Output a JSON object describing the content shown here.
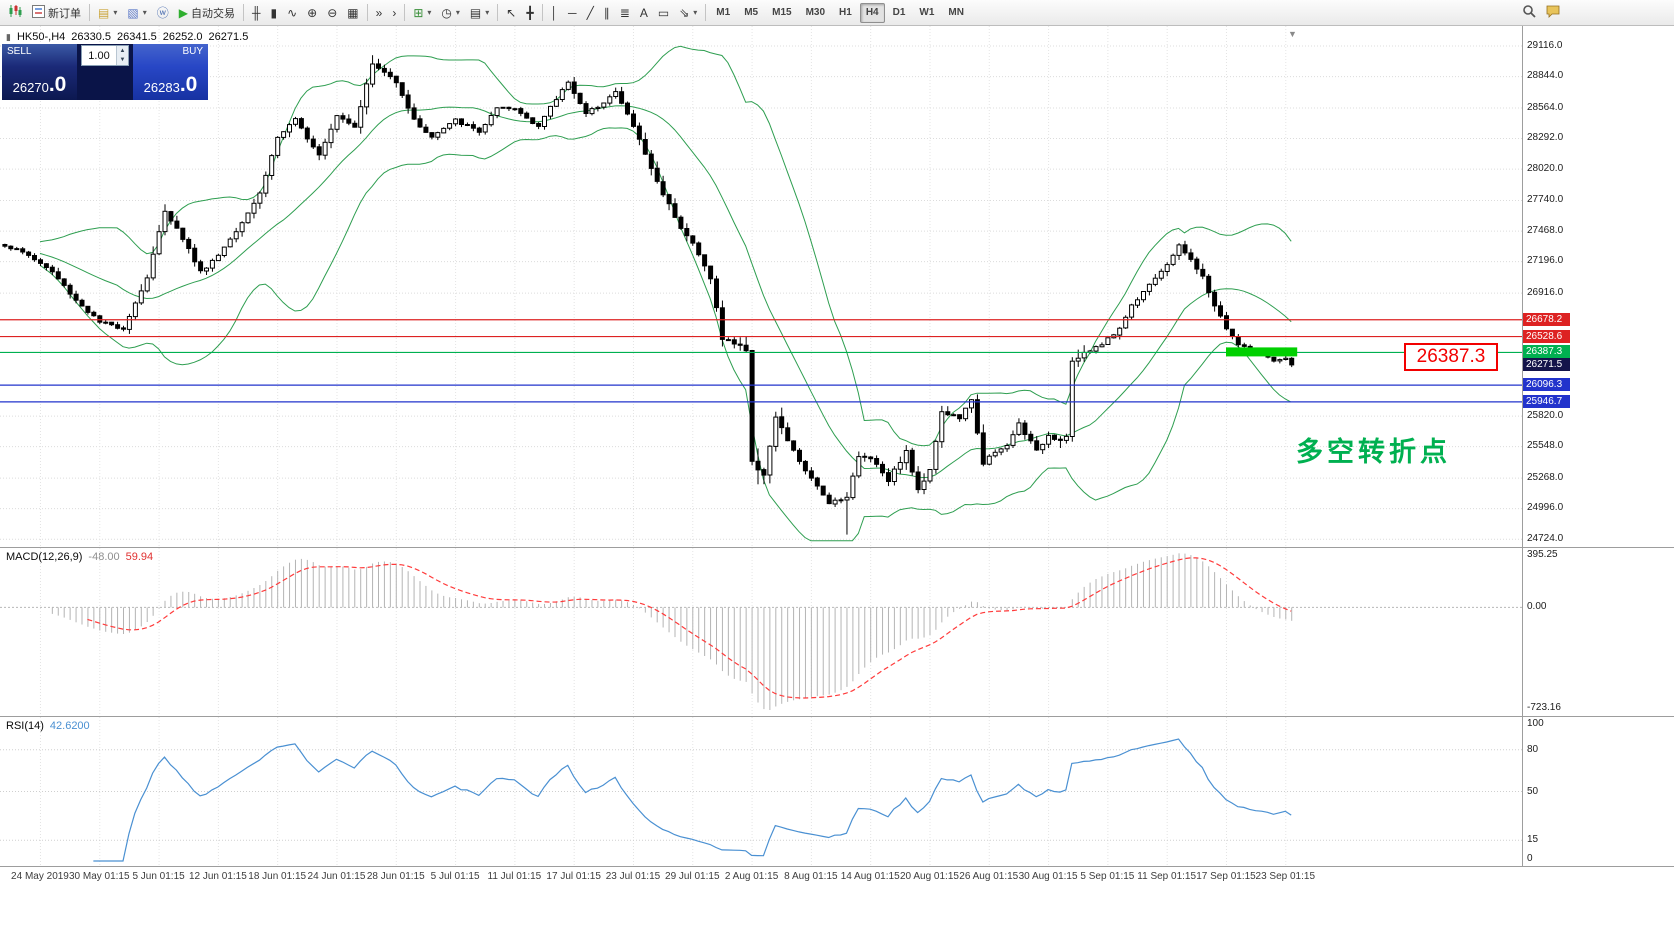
{
  "toolbar": {
    "new_order_label": "新订单",
    "auto_trading_label": "自动交易",
    "timeframes": [
      "M1",
      "M5",
      "M15",
      "M30",
      "H1",
      "H4",
      "D1",
      "W1",
      "MN"
    ],
    "active_timeframe": "H4",
    "items": [
      {
        "name": "app-icon",
        "icon": "logo",
        "inter": false
      },
      {
        "name": "new-order-button",
        "icon": "neworder",
        "label": "新订单"
      },
      {
        "type": "sep"
      },
      {
        "name": "new-chart-icon",
        "glyph": "▤",
        "color": "#caa53c",
        "dropdown": true
      },
      {
        "name": "profiles-icon",
        "glyph": "▧",
        "color": "#5b78c8",
        "dropdown": true
      },
      {
        "name": "data-window-icon",
        "glyph": "ⓦ",
        "color": "#4a6db0"
      },
      {
        "name": "auto-trading-button",
        "glyph": "▶",
        "color": "#2faf2f",
        "label": "自动交易"
      },
      {
        "type": "sep"
      },
      {
        "name": "bar-chart-button",
        "glyph": "╫"
      },
      {
        "name": "candle-chart-button",
        "glyph": "▮"
      },
      {
        "name": "line-chart-button",
        "glyph": "∿"
      },
      {
        "name": "zoom-in-button",
        "glyph": "⊕"
      },
      {
        "name": "zoom-out-button",
        "glyph": "⊖"
      },
      {
        "name": "tile-windows-icon",
        "glyph": "▦"
      },
      {
        "type": "sep"
      },
      {
        "name": "auto-scroll-button",
        "glyph": "»"
      },
      {
        "name": "chart-shift-button",
        "glyph": "›"
      },
      {
        "type": "sep"
      },
      {
        "name": "indicators-button",
        "glyph": "⊞",
        "color": "#3a8f3a",
        "dropdown": true
      },
      {
        "name": "periods-button",
        "glyph": "◷",
        "dropdown": true
      },
      {
        "name": "templates-button",
        "glyph": "▤",
        "dropdown": true
      },
      {
        "type": "sep"
      },
      {
        "name": "cursor-button",
        "glyph": "↖"
      },
      {
        "name": "crosshair-button",
        "glyph": "╋"
      },
      {
        "type": "sep"
      },
      {
        "name": "vertical-line-button",
        "glyph": "│"
      },
      {
        "name": "horizontal-line-button",
        "glyph": "─"
      },
      {
        "name": "trendline-button",
        "glyph": "╱"
      },
      {
        "name": "channel-button",
        "glyph": "∥"
      },
      {
        "name": "fibonacci-button",
        "glyph": "≣"
      },
      {
        "name": "text-button",
        "glyph": "A"
      },
      {
        "name": "text-label-button",
        "glyph": "▭"
      },
      {
        "name": "arrows-button",
        "glyph": "⇘",
        "dropdown": true
      },
      {
        "type": "sep"
      },
      {
        "type": "timeframes"
      },
      {
        "type": "spacer"
      },
      {
        "name": "search-icon",
        "icon": "search"
      },
      {
        "name": "chat-icon",
        "icon": "chat"
      },
      {
        "type": "endgap"
      }
    ]
  },
  "chart_header": {
    "icon_glyph": "▮",
    "symbol_period": "HK50-,H4",
    "open": "26330.5",
    "high": "26341.5",
    "low": "26252.0",
    "close": "26271.5"
  },
  "one_click": {
    "sell_label": "SELL",
    "buy_label": "BUY",
    "sell_price_main": "26270",
    "sell_price_frac": ".0",
    "buy_price_main": "26283",
    "buy_price_frac": ".0",
    "volume": "1.00",
    "spin_up": "▲",
    "spin_down": "▼"
  },
  "price_scale": {
    "ticks": [
      "29116.0",
      "28844.0",
      "28564.0",
      "28292.0",
      "28020.0",
      "27740.0",
      "27468.0",
      "27196.0",
      "26916.0",
      "25820.0",
      "25548.0",
      "25268.0",
      "24996.0",
      "24724.0"
    ]
  },
  "hlines": [
    {
      "price": 26678.2,
      "label": "26678.2",
      "color": "#dd2222"
    },
    {
      "price": 26528.6,
      "label": "26528.6",
      "color": "#dd2222"
    },
    {
      "price": 26387.3,
      "label": "26387.3",
      "color": "#00b050"
    },
    {
      "price": 26096.3,
      "label": "26096.3",
      "color": "#2233cc"
    },
    {
      "price": 25946.7,
      "label": "25946.7",
      "color": "#2233cc"
    }
  ],
  "current_price": {
    "price": 26271.5,
    "label": "26271.5",
    "color": "#14144a"
  },
  "annotations": {
    "callout": "26387.3",
    "turning_point": "多空转折点",
    "scroll_marker": "▼",
    "highlight_price": 26387.3,
    "highlight_from_bar": 206
  },
  "macd": {
    "label": "MACD(12,26,9)",
    "value_main": "-48.00",
    "value_signal": "59.94",
    "scale": [
      "395.25",
      "0.00",
      "-723.16"
    ]
  },
  "rsi": {
    "label": "RSI(14)",
    "value": "42.6200",
    "scale": [
      "100",
      "80",
      "50",
      "15",
      "0"
    ],
    "levels": [
      80,
      50,
      15
    ]
  },
  "x_axis": [
    "24 May 2019",
    "30 May 01:15",
    "5 Jun 01:15",
    "12 Jun 01:15",
    "18 Jun 01:15",
    "24 Jun 01:15",
    "28 Jun 01:15",
    "5 Jul 01:15",
    "11 Jul 01:15",
    "17 Jul 01:15",
    "23 Jul 01:15",
    "29 Jul 01:15",
    "2 Aug 01:15",
    "8 Aug 01:15",
    "14 Aug 01:15",
    "20 Aug 01:15",
    "26 Aug 01:15",
    "30 Aug 01:15",
    "5 Sep 01:15",
    "11 Sep 01:15",
    "17 Sep 01:15",
    "23 Sep 01:15"
  ],
  "colors": {
    "band": "#2e9e50",
    "bull": "#ffffff",
    "bear": "#000000",
    "wick": "#000000",
    "macd_hist": "#b4b4b4",
    "macd_signal": "#ff3b3b",
    "rsi_line": "#4a90d2",
    "highlight": "#00d000",
    "grid": "#dcdcdc"
  },
  "chart_data": {
    "type": "candlestick",
    "symbol": "HK50-",
    "timeframe": "H4",
    "bars": 218,
    "y_range": [
      24650,
      29290
    ],
    "last_ohlc": {
      "open": 26330.5,
      "high": 26341.5,
      "low": 26252.0,
      "close": 26271.5
    },
    "specials": {
      "peak": [
        62,
        29030
      ],
      "low": [
        142,
        24760
      ]
    },
    "indicators": {
      "bollinger": {
        "period": 20,
        "deviation": 2
      },
      "macd": {
        "fast": 12,
        "slow": 26,
        "signal": 9
      },
      "rsi": {
        "period": 14
      }
    },
    "price_path": [
      [
        0,
        27340
      ],
      [
        4,
        27250
      ],
      [
        8,
        27100
      ],
      [
        12,
        26850
      ],
      [
        16,
        26650
      ],
      [
        20,
        26600
      ],
      [
        24,
        27050
      ],
      [
        27,
        27650
      ],
      [
        30,
        27400
      ],
      [
        33,
        27100
      ],
      [
        36,
        27250
      ],
      [
        40,
        27550
      ],
      [
        43,
        27800
      ],
      [
        46,
        28300
      ],
      [
        49,
        28450
      ],
      [
        53,
        28150
      ],
      [
        56,
        28500
      ],
      [
        59,
        28400
      ],
      [
        62,
        28950
      ],
      [
        66,
        28800
      ],
      [
        69,
        28450
      ],
      [
        72,
        28300
      ],
      [
        76,
        28450
      ],
      [
        80,
        28350
      ],
      [
        83,
        28550
      ],
      [
        86,
        28550
      ],
      [
        90,
        28400
      ],
      [
        95,
        28800
      ],
      [
        98,
        28500
      ],
      [
        103,
        28700
      ],
      [
        106,
        28400
      ],
      [
        110,
        27900
      ],
      [
        114,
        27500
      ],
      [
        116,
        27350
      ],
      [
        119,
        27050
      ],
      [
        121,
        26500
      ],
      [
        124,
        26450
      ],
      [
        125,
        26400
      ],
      [
        126,
        25400
      ],
      [
        128,
        25300
      ],
      [
        130,
        25800
      ],
      [
        133,
        25500
      ],
      [
        136,
        25250
      ],
      [
        139,
        25050
      ],
      [
        142,
        25100
      ],
      [
        144,
        25450
      ],
      [
        146,
        25450
      ],
      [
        149,
        25250
      ],
      [
        152,
        25500
      ],
      [
        154,
        25150
      ],
      [
        156,
        25350
      ],
      [
        158,
        25850
      ],
      [
        161,
        25800
      ],
      [
        163,
        25950
      ],
      [
        165,
        25400
      ],
      [
        166,
        25450
      ],
      [
        169,
        25550
      ],
      [
        171,
        25750
      ],
      [
        174,
        25500
      ],
      [
        176,
        25650
      ],
      [
        178,
        25600
      ],
      [
        179,
        25650
      ],
      [
        180,
        26300
      ],
      [
        183,
        26400
      ],
      [
        186,
        26500
      ],
      [
        188,
        26600
      ],
      [
        190,
        26800
      ],
      [
        193,
        27000
      ],
      [
        196,
        27150
      ],
      [
        198,
        27350
      ],
      [
        200,
        27200
      ],
      [
        202,
        27050
      ],
      [
        204,
        26800
      ],
      [
        206,
        26600
      ],
      [
        208,
        26450
      ],
      [
        210,
        26400
      ],
      [
        212,
        26350
      ],
      [
        214,
        26300
      ],
      [
        216,
        26320
      ],
      [
        217,
        26271.5
      ]
    ]
  }
}
